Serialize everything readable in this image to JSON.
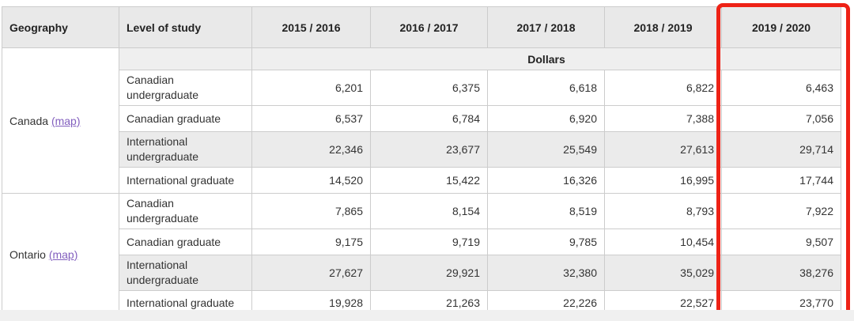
{
  "table": {
    "columns": [
      "Geography",
      "Level of study",
      "2015 / 2016",
      "2016 / 2017",
      "2017 / 2018",
      "2018 / 2019",
      "2019 / 2020"
    ],
    "units_label": "Dollars",
    "groups": [
      {
        "geography": "Canada",
        "map_link": "(map)",
        "rows": [
          {
            "level": "Canadian undergraduate",
            "values": [
              "6,201",
              "6,375",
              "6,618",
              "6,822",
              "6,463"
            ]
          },
          {
            "level": "Canadian graduate",
            "values": [
              "6,537",
              "6,784",
              "6,920",
              "7,388",
              "7,056"
            ]
          },
          {
            "level": "International undergraduate",
            "values": [
              "22,346",
              "23,677",
              "25,549",
              "27,613",
              "29,714"
            ]
          },
          {
            "level": "International graduate",
            "values": [
              "14,520",
              "15,422",
              "16,326",
              "16,995",
              "17,744"
            ]
          }
        ]
      },
      {
        "geography": "Ontario",
        "map_link": "(map)",
        "rows": [
          {
            "level": "Canadian undergraduate",
            "values": [
              "7,865",
              "8,154",
              "8,519",
              "8,793",
              "7,922"
            ]
          },
          {
            "level": "Canadian graduate",
            "values": [
              "9,175",
              "9,719",
              "9,785",
              "10,454",
              "9,507"
            ]
          },
          {
            "level": "International undergraduate",
            "values": [
              "27,627",
              "29,921",
              "32,380",
              "35,029",
              "38,276"
            ]
          },
          {
            "level": "International graduate",
            "values": [
              "19,928",
              "21,263",
              "22,226",
              "22,527",
              "23,770"
            ]
          }
        ]
      }
    ],
    "highlight": {
      "column": "2019 / 2020",
      "color": "#ee2216"
    },
    "colors": {
      "link": "#825fbe",
      "header_bg": "#e9e9e9",
      "shaded_row_bg": "#ebebeb",
      "units_row_bg": "#efefef"
    }
  }
}
